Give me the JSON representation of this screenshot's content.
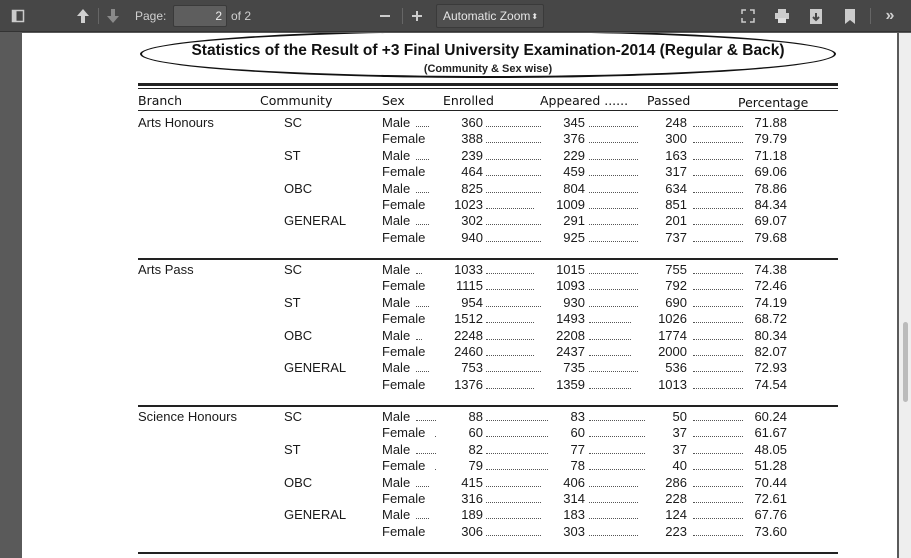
{
  "toolbar": {
    "page_label": "Page:",
    "page_value": "2",
    "page_of": "of 2",
    "zoom_value": "Automatic Zoom",
    "icons": [
      "sidebar-toggle-icon",
      "previous-page-icon",
      "next-page-icon",
      "zoom-out-icon",
      "zoom-in-icon",
      "presentation-mode-icon",
      "print-icon",
      "download-icon",
      "bookmark-icon",
      "tools-menu-icon"
    ]
  },
  "document": {
    "title": "Statistics of the Result of +3 Final University Examination-2014 (Regular & Back)",
    "subtitle": "(Community & Sex wise)",
    "headers": {
      "branch": "Branch",
      "community": "Community",
      "sex": "Sex",
      "enrolled": "Enrolled",
      "appeared": "Appeared ......",
      "passed": "Passed",
      "percentage": "Percentage"
    },
    "sections": [
      {
        "branch": "Arts Honours",
        "groups": [
          {
            "community": "SC",
            "rows": [
              [
                "Male",
                "360",
                "345",
                "248",
                "71.88"
              ],
              [
                "Female",
                "388",
                "376",
                "300",
                "79.79"
              ]
            ]
          },
          {
            "community": "ST",
            "rows": [
              [
                "Male",
                "239",
                "229",
                "163",
                "71.18"
              ],
              [
                "Female",
                "464",
                "459",
                "317",
                "69.06"
              ]
            ]
          },
          {
            "community": "OBC",
            "rows": [
              [
                "Male",
                "825",
                "804",
                "634",
                "78.86"
              ],
              [
                "Female",
                "1023",
                "1009",
                "851",
                "84.34"
              ]
            ]
          },
          {
            "community": "GENERAL",
            "rows": [
              [
                "Male",
                "302",
                "291",
                "201",
                "69.07"
              ],
              [
                "Female",
                "940",
                "925",
                "737",
                "79.68"
              ]
            ]
          }
        ]
      },
      {
        "branch": "Arts Pass",
        "groups": [
          {
            "community": "SC",
            "rows": [
              [
                "Male",
                "1033",
                "1015",
                "755",
                "74.38"
              ],
              [
                "Female",
                "1115",
                "1093",
                "792",
                "72.46"
              ]
            ]
          },
          {
            "community": "ST",
            "rows": [
              [
                "Male",
                "954",
                "930",
                "690",
                "74.19"
              ],
              [
                "Female",
                "1512",
                "1493",
                "1026",
                "68.72"
              ]
            ]
          },
          {
            "community": "OBC",
            "rows": [
              [
                "Male",
                "2248",
                "2208",
                "1774",
                "80.34"
              ],
              [
                "Female",
                "2460",
                "2437",
                "2000",
                "82.07"
              ]
            ]
          },
          {
            "community": "GENERAL",
            "rows": [
              [
                "Male",
                "753",
                "735",
                "536",
                "72.93"
              ],
              [
                "Female",
                "1376",
                "1359",
                "1013",
                "74.54"
              ]
            ]
          }
        ]
      },
      {
        "branch": "Science Honours",
        "groups": [
          {
            "community": "SC",
            "rows": [
              [
                "Male",
                "88",
                "83",
                "50",
                "60.24"
              ],
              [
                "Female",
                "60",
                "60",
                "37",
                "61.67"
              ]
            ]
          },
          {
            "community": "ST",
            "rows": [
              [
                "Male",
                "82",
                "77",
                "37",
                "48.05"
              ],
              [
                "Female",
                "79",
                "78",
                "40",
                "51.28"
              ]
            ]
          },
          {
            "community": "OBC",
            "rows": [
              [
                "Male",
                "415",
                "406",
                "286",
                "70.44"
              ],
              [
                "Female",
                "316",
                "314",
                "228",
                "72.61"
              ]
            ]
          },
          {
            "community": "GENERAL",
            "rows": [
              [
                "Male",
                "189",
                "183",
                "124",
                "67.76"
              ],
              [
                "Female",
                "306",
                "303",
                "223",
                "73.60"
              ]
            ]
          }
        ]
      }
    ]
  }
}
